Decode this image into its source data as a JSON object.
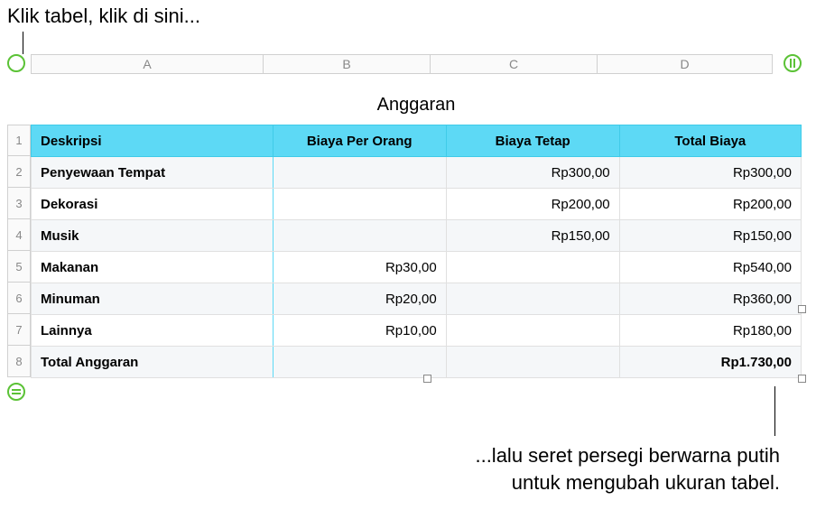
{
  "callouts": {
    "top": "Klik tabel, klik di sini...",
    "bottom_line1": "...lalu seret persegi berwarna putih",
    "bottom_line2": "untuk mengubah ukuran tabel."
  },
  "column_headers": [
    "A",
    "B",
    "C",
    "D"
  ],
  "row_headers": [
    "1",
    "2",
    "3",
    "4",
    "5",
    "6",
    "7",
    "8"
  ],
  "table": {
    "title": "Anggaran",
    "headers": [
      "Deskripsi",
      "Biaya Per Orang",
      "Biaya Tetap",
      "Total Biaya"
    ],
    "rows": [
      [
        "Penyewaan Tempat",
        "",
        "Rp300,00",
        "Rp300,00"
      ],
      [
        "Dekorasi",
        "",
        "Rp200,00",
        "Rp200,00"
      ],
      [
        "Musik",
        "",
        "Rp150,00",
        "Rp150,00"
      ],
      [
        "Makanan",
        "Rp30,00",
        "",
        "Rp540,00"
      ],
      [
        "Minuman",
        "Rp20,00",
        "",
        "Rp360,00"
      ],
      [
        "Lainnya",
        "Rp10,00",
        "",
        "Rp180,00"
      ],
      [
        "Total Anggaran",
        "",
        "",
        "Rp1.730,00"
      ]
    ]
  },
  "colors": {
    "header_bg": "#5dd9f5",
    "header_border": "#40cbe8",
    "accent_border": "#5dd9f5",
    "alt_row": "#f5f7f9",
    "handle_green": "#5bc236"
  }
}
